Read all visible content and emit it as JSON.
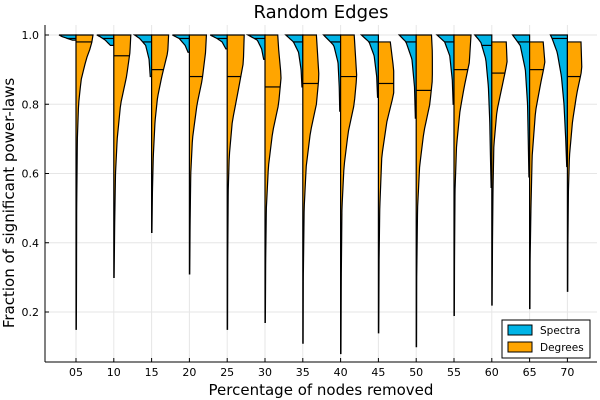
{
  "chart_data": {
    "type": "violin",
    "title": "Random Edges",
    "xlabel": "Percentage of nodes removed",
    "ylabel": "Fraction of significant power-laws",
    "ylim": [
      0.05,
      1.03
    ],
    "yticks": [
      "0.2",
      "0.4",
      "0.6",
      "0.8",
      "1.0"
    ],
    "grid": true,
    "legend_position": "bottom-right",
    "categories": [
      "05",
      "10",
      "15",
      "20",
      "25",
      "30",
      "35",
      "40",
      "45",
      "50",
      "55",
      "60",
      "65",
      "70"
    ],
    "series": [
      {
        "name": "Spectra",
        "color": "#00b4e6",
        "side": "left",
        "distributions": [
          {
            "min": 0.985,
            "max": 1.0,
            "median": 0.99,
            "profile": [
              [
                0.985,
                0.2
              ],
              [
                0.99,
                0.5
              ],
              [
                0.995,
                0.8
              ],
              [
                1.0,
                1.0
              ]
            ]
          },
          {
            "min": 0.97,
            "max": 1.0,
            "median": 0.99,
            "profile": [
              [
                0.97,
                0.2
              ],
              [
                0.985,
                0.5
              ],
              [
                0.995,
                0.8
              ],
              [
                1.0,
                1.0
              ]
            ]
          },
          {
            "min": 0.88,
            "max": 1.0,
            "median": 0.98,
            "profile": [
              [
                0.88,
                0.08
              ],
              [
                0.93,
                0.15
              ],
              [
                0.97,
                0.35
              ],
              [
                0.99,
                0.7
              ],
              [
                1.0,
                1.0
              ]
            ]
          },
          {
            "min": 0.95,
            "max": 1.0,
            "median": 0.99,
            "profile": [
              [
                0.95,
                0.08
              ],
              [
                0.97,
                0.25
              ],
              [
                0.99,
                0.6
              ],
              [
                1.0,
                1.0
              ]
            ]
          },
          {
            "min": 0.96,
            "max": 1.0,
            "median": 0.99,
            "profile": [
              [
                0.96,
                0.08
              ],
              [
                0.98,
                0.3
              ],
              [
                0.99,
                0.6
              ],
              [
                1.0,
                1.0
              ]
            ]
          },
          {
            "min": 0.93,
            "max": 1.0,
            "median": 0.99,
            "profile": [
              [
                0.93,
                0.08
              ],
              [
                0.96,
                0.2
              ],
              [
                0.985,
                0.45
              ],
              [
                1.0,
                1.0
              ]
            ]
          },
          {
            "min": 0.85,
            "max": 1.0,
            "median": 0.98,
            "profile": [
              [
                0.85,
                0.05
              ],
              [
                0.9,
                0.1
              ],
              [
                0.95,
                0.25
              ],
              [
                0.98,
                0.55
              ],
              [
                1.0,
                1.0
              ]
            ]
          },
          {
            "min": 0.78,
            "max": 1.0,
            "median": 0.98,
            "profile": [
              [
                0.78,
                0.05
              ],
              [
                0.85,
                0.08
              ],
              [
                0.92,
                0.15
              ],
              [
                0.97,
                0.4
              ],
              [
                1.0,
                1.0
              ]
            ]
          },
          {
            "min": 0.82,
            "max": 1.0,
            "median": 0.98,
            "profile": [
              [
                0.82,
                0.05
              ],
              [
                0.88,
                0.1
              ],
              [
                0.94,
                0.25
              ],
              [
                0.98,
                0.55
              ],
              [
                1.0,
                1.0
              ]
            ]
          },
          {
            "min": 0.76,
            "max": 1.0,
            "median": 0.98,
            "profile": [
              [
                0.76,
                0.05
              ],
              [
                0.85,
                0.1
              ],
              [
                0.93,
                0.25
              ],
              [
                0.98,
                0.6
              ],
              [
                1.0,
                1.0
              ]
            ]
          },
          {
            "min": 0.8,
            "max": 1.0,
            "median": 0.98,
            "profile": [
              [
                0.8,
                0.05
              ],
              [
                0.87,
                0.1
              ],
              [
                0.94,
                0.25
              ],
              [
                0.98,
                0.55
              ],
              [
                1.0,
                1.0
              ]
            ]
          },
          {
            "min": 0.56,
            "max": 1.0,
            "median": 0.97,
            "profile": [
              [
                0.56,
                0.04
              ],
              [
                0.65,
                0.08
              ],
              [
                0.75,
                0.12
              ],
              [
                0.85,
                0.2
              ],
              [
                0.93,
                0.35
              ],
              [
                0.98,
                0.65
              ],
              [
                1.0,
                1.0
              ]
            ]
          },
          {
            "min": 0.59,
            "max": 1.0,
            "median": 0.98,
            "profile": [
              [
                0.59,
                0.04
              ],
              [
                0.7,
                0.08
              ],
              [
                0.8,
                0.12
              ],
              [
                0.9,
                0.25
              ],
              [
                0.97,
                0.55
              ],
              [
                1.0,
                1.0
              ]
            ]
          },
          {
            "min": 0.62,
            "max": 1.0,
            "median": 0.99,
            "profile": [
              [
                0.62,
                0.04
              ],
              [
                0.7,
                0.1
              ],
              [
                0.8,
                0.2
              ],
              [
                0.88,
                0.35
              ],
              [
                0.95,
                0.6
              ],
              [
                0.99,
                0.9
              ],
              [
                1.0,
                1.0
              ]
            ]
          }
        ]
      },
      {
        "name": "Degrees",
        "color": "#ffa500",
        "side": "right",
        "distributions": [
          {
            "min": 0.15,
            "max": 1.0,
            "median": 0.98,
            "profile": [
              [
                0.15,
                0.02
              ],
              [
                0.3,
                0.03
              ],
              [
                0.5,
                0.04
              ],
              [
                0.7,
                0.08
              ],
              [
                0.8,
                0.15
              ],
              [
                0.87,
                0.3
              ],
              [
                0.93,
                0.6
              ],
              [
                0.97,
                0.9
              ],
              [
                1.0,
                1.0
              ]
            ]
          },
          {
            "min": 0.3,
            "max": 1.0,
            "median": 0.94,
            "profile": [
              [
                0.3,
                0.02
              ],
              [
                0.45,
                0.05
              ],
              [
                0.6,
                0.1
              ],
              [
                0.7,
                0.2
              ],
              [
                0.8,
                0.4
              ],
              [
                0.88,
                0.75
              ],
              [
                0.95,
                0.95
              ],
              [
                1.0,
                1.0
              ]
            ]
          },
          {
            "min": 0.43,
            "max": 1.0,
            "median": 0.9,
            "profile": [
              [
                0.43,
                0.02
              ],
              [
                0.55,
                0.05
              ],
              [
                0.65,
                0.1
              ],
              [
                0.75,
                0.2
              ],
              [
                0.82,
                0.35
              ],
              [
                0.88,
                0.6
              ],
              [
                0.95,
                0.95
              ],
              [
                1.0,
                1.0
              ]
            ]
          },
          {
            "min": 0.31,
            "max": 1.0,
            "median": 0.88,
            "profile": [
              [
                0.31,
                0.02
              ],
              [
                0.45,
                0.04
              ],
              [
                0.6,
                0.08
              ],
              [
                0.7,
                0.18
              ],
              [
                0.8,
                0.45
              ],
              [
                0.87,
                0.75
              ],
              [
                0.95,
                0.95
              ],
              [
                1.0,
                1.0
              ]
            ]
          },
          {
            "min": 0.15,
            "max": 1.0,
            "median": 0.88,
            "profile": [
              [
                0.15,
                0.02
              ],
              [
                0.35,
                0.03
              ],
              [
                0.55,
                0.06
              ],
              [
                0.65,
                0.12
              ],
              [
                0.75,
                0.3
              ],
              [
                0.84,
                0.65
              ],
              [
                0.92,
                0.95
              ],
              [
                1.0,
                1.0
              ]
            ]
          },
          {
            "min": 0.17,
            "max": 1.0,
            "median": 0.85,
            "profile": [
              [
                0.17,
                0.02
              ],
              [
                0.35,
                0.04
              ],
              [
                0.5,
                0.08
              ],
              [
                0.62,
                0.2
              ],
              [
                0.72,
                0.45
              ],
              [
                0.8,
                0.8
              ],
              [
                0.88,
                0.95
              ],
              [
                0.96,
                0.8
              ],
              [
                1.0,
                0.75
              ]
            ]
          },
          {
            "min": 0.11,
            "max": 1.0,
            "median": 0.86,
            "profile": [
              [
                0.11,
                0.02
              ],
              [
                0.3,
                0.03
              ],
              [
                0.5,
                0.08
              ],
              [
                0.62,
                0.2
              ],
              [
                0.72,
                0.45
              ],
              [
                0.8,
                0.8
              ],
              [
                0.88,
                0.95
              ],
              [
                0.96,
                0.85
              ],
              [
                1.0,
                0.8
              ]
            ]
          },
          {
            "min": 0.08,
            "max": 1.0,
            "median": 0.88,
            "profile": [
              [
                0.08,
                0.02
              ],
              [
                0.3,
                0.04
              ],
              [
                0.5,
                0.08
              ],
              [
                0.62,
                0.2
              ],
              [
                0.72,
                0.45
              ],
              [
                0.8,
                0.8
              ],
              [
                0.88,
                0.95
              ],
              [
                0.96,
                0.85
              ],
              [
                1.0,
                0.8
              ]
            ]
          },
          {
            "min": 0.14,
            "max": 0.98,
            "median": 0.86,
            "profile": [
              [
                0.14,
                0.02
              ],
              [
                0.35,
                0.04
              ],
              [
                0.5,
                0.08
              ],
              [
                0.65,
                0.2
              ],
              [
                0.75,
                0.5
              ],
              [
                0.83,
                0.9
              ],
              [
                0.9,
                0.9
              ],
              [
                0.96,
                0.75
              ],
              [
                0.98,
                0.7
              ]
            ]
          },
          {
            "min": 0.1,
            "max": 1.0,
            "median": 0.84,
            "profile": [
              [
                0.1,
                0.02
              ],
              [
                0.3,
                0.03
              ],
              [
                0.5,
                0.08
              ],
              [
                0.62,
                0.2
              ],
              [
                0.72,
                0.45
              ],
              [
                0.8,
                0.8
              ],
              [
                0.87,
                0.95
              ],
              [
                0.95,
                0.95
              ],
              [
                1.0,
                0.9
              ]
            ]
          },
          {
            "min": 0.19,
            "max": 1.0,
            "median": 0.9,
            "profile": [
              [
                0.19,
                0.02
              ],
              [
                0.35,
                0.03
              ],
              [
                0.55,
                0.06
              ],
              [
                0.68,
                0.15
              ],
              [
                0.78,
                0.35
              ],
              [
                0.85,
                0.6
              ],
              [
                0.92,
                0.9
              ],
              [
                1.0,
                1.0
              ]
            ]
          },
          {
            "min": 0.22,
            "max": 0.98,
            "median": 0.89,
            "profile": [
              [
                0.22,
                0.02
              ],
              [
                0.4,
                0.04
              ],
              [
                0.55,
                0.07
              ],
              [
                0.68,
                0.12
              ],
              [
                0.78,
                0.3
              ],
              [
                0.85,
                0.6
              ],
              [
                0.92,
                0.9
              ],
              [
                0.98,
                0.85
              ]
            ]
          },
          {
            "min": 0.21,
            "max": 0.98,
            "median": 0.9,
            "profile": [
              [
                0.21,
                0.02
              ],
              [
                0.35,
                0.03
              ],
              [
                0.5,
                0.08
              ],
              [
                0.65,
                0.15
              ],
              [
                0.78,
                0.35
              ],
              [
                0.86,
                0.65
              ],
              [
                0.92,
                0.9
              ],
              [
                0.98,
                0.8
              ]
            ]
          },
          {
            "min": 0.26,
            "max": 0.98,
            "median": 0.88,
            "profile": [
              [
                0.26,
                0.02
              ],
              [
                0.4,
                0.03
              ],
              [
                0.55,
                0.06
              ],
              [
                0.65,
                0.12
              ],
              [
                0.75,
                0.3
              ],
              [
                0.83,
                0.55
              ],
              [
                0.9,
                0.85
              ],
              [
                0.98,
                0.8
              ]
            ]
          }
        ]
      }
    ]
  }
}
